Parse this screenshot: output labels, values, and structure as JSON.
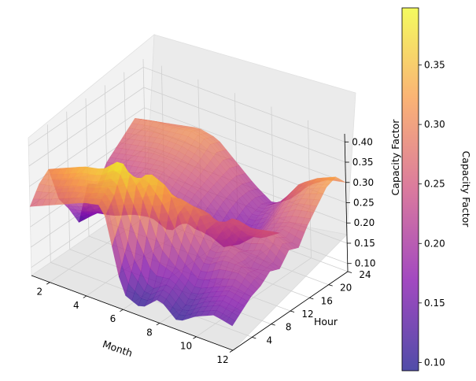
{
  "chart_data": {
    "type": "surface3d",
    "title": "",
    "xlabel": "Month",
    "ylabel": "Hour",
    "zlabel": "Capacity Factor",
    "colorbar_label": "Capacity Factor",
    "colormap": "plasma",
    "alpha": 0.7,
    "xlim": [
      1,
      12
    ],
    "ylim": [
      0,
      24
    ],
    "zlim": [
      0.08,
      0.42
    ],
    "x_ticks": [
      "2",
      "4",
      "6",
      "8",
      "10",
      "12"
    ],
    "y_ticks": [
      "4",
      "8",
      "12",
      "16",
      "20",
      "24"
    ],
    "z_ticks": [
      "0.10",
      "0.15",
      "0.20",
      "0.25",
      "0.30",
      "0.35",
      "0.40"
    ],
    "colorbar_ticks": [
      "0.10",
      "0.15",
      "0.20",
      "0.25",
      "0.30",
      "0.35"
    ],
    "colorbar_range": [
      0.093,
      0.398
    ],
    "grid": true,
    "surface": {
      "months": [
        1,
        2,
        3,
        4,
        5,
        6,
        7,
        8,
        9,
        10,
        11,
        12
      ],
      "hours": [
        0,
        2,
        4,
        6,
        8,
        10,
        12,
        14,
        16,
        18,
        20,
        22,
        24
      ],
      "capacity_factor": [
        [
          0.25,
          0.29,
          0.31,
          0.22,
          0.18,
          0.13,
          0.21,
          0.19,
          0.23,
          0.25,
          0.27,
          0.29,
          0.27
        ],
        [
          0.27,
          0.3,
          0.33,
          0.24,
          0.19,
          0.17,
          0.22,
          0.2,
          0.24,
          0.26,
          0.28,
          0.3,
          0.28
        ],
        [
          0.29,
          0.32,
          0.35,
          0.27,
          0.22,
          0.18,
          0.24,
          0.23,
          0.25,
          0.27,
          0.29,
          0.3,
          0.29
        ],
        [
          0.31,
          0.33,
          0.36,
          0.3,
          0.24,
          0.2,
          0.25,
          0.24,
          0.26,
          0.27,
          0.29,
          0.31,
          0.3
        ],
        [
          0.32,
          0.35,
          0.4,
          0.32,
          0.26,
          0.21,
          0.25,
          0.22,
          0.24,
          0.26,
          0.28,
          0.3,
          0.29
        ],
        [
          0.12,
          0.2,
          0.34,
          0.37,
          0.27,
          0.19,
          0.23,
          0.21,
          0.23,
          0.24,
          0.25,
          0.26,
          0.25
        ],
        [
          0.1,
          0.13,
          0.22,
          0.35,
          0.31,
          0.24,
          0.19,
          0.17,
          0.19,
          0.21,
          0.22,
          0.22,
          0.21
        ],
        [
          0.14,
          0.16,
          0.18,
          0.24,
          0.3,
          0.28,
          0.22,
          0.15,
          0.14,
          0.16,
          0.18,
          0.19,
          0.18
        ],
        [
          0.1,
          0.12,
          0.15,
          0.19,
          0.22,
          0.24,
          0.26,
          0.2,
          0.18,
          0.19,
          0.21,
          0.22,
          0.21
        ],
        [
          0.13,
          0.15,
          0.17,
          0.22,
          0.24,
          0.21,
          0.25,
          0.21,
          0.23,
          0.25,
          0.27,
          0.28,
          0.26
        ],
        [
          0.15,
          0.17,
          0.19,
          0.22,
          0.2,
          0.23,
          0.26,
          0.24,
          0.25,
          0.28,
          0.3,
          0.31,
          0.29
        ],
        [
          0.14,
          0.16,
          0.18,
          0.19,
          0.21,
          0.2,
          0.23,
          0.22,
          0.26,
          0.29,
          0.32,
          0.33,
          0.3
        ]
      ]
    }
  }
}
